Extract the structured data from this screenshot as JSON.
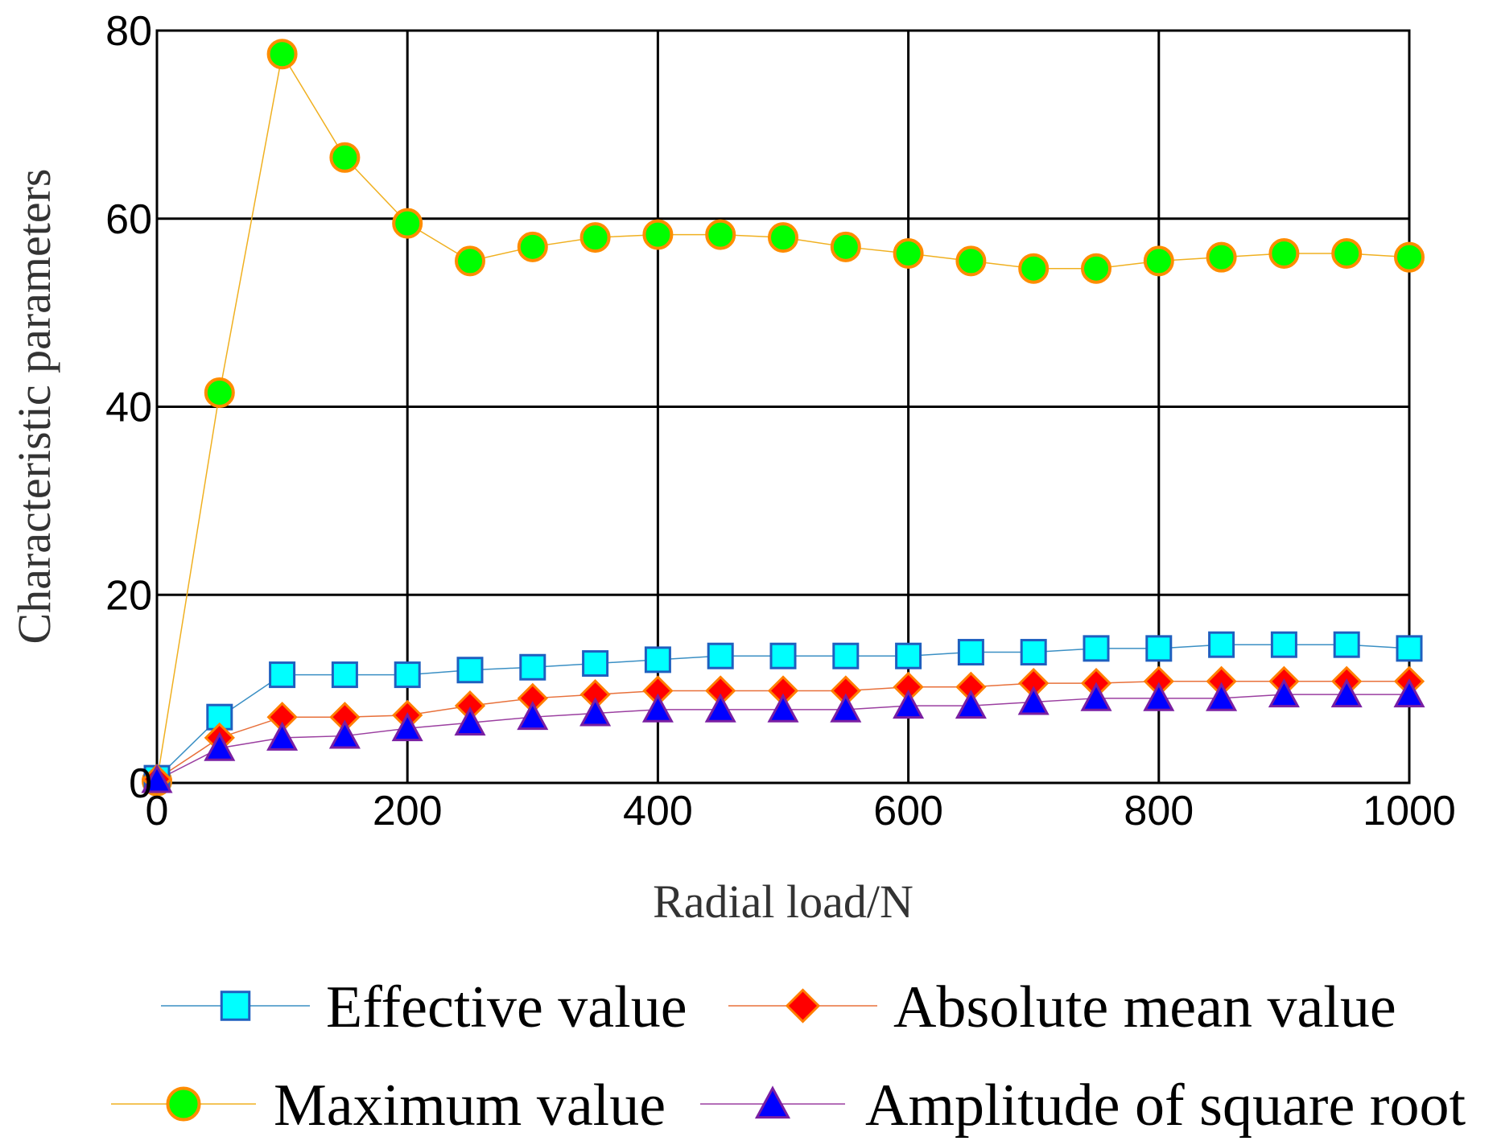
{
  "chart_data": {
    "type": "line",
    "title": "",
    "xlabel": "Radial load/N",
    "ylabel": "Characteristic parameters",
    "xlim": [
      0,
      1000
    ],
    "ylim": [
      0,
      80
    ],
    "xticks": [
      0,
      200,
      400,
      600,
      800,
      1000
    ],
    "yticks": [
      0,
      20,
      40,
      60,
      80
    ],
    "grid": true,
    "legend_position": "bottom",
    "x": [
      0,
      50,
      100,
      150,
      200,
      250,
      300,
      350,
      400,
      450,
      500,
      550,
      600,
      650,
      700,
      750,
      800,
      850,
      900,
      950,
      1000
    ],
    "series": [
      {
        "name": "Effective value",
        "marker": "square",
        "line_color": "#3a8fc4",
        "fill_color": "#00ffff",
        "stroke_color": "#1f5fbf",
        "values": [
          0.5,
          7.0,
          11.5,
          11.5,
          11.5,
          12.0,
          12.3,
          12.7,
          13.1,
          13.5,
          13.5,
          13.5,
          13.5,
          13.9,
          13.9,
          14.3,
          14.3,
          14.7,
          14.7,
          14.7,
          14.3
        ]
      },
      {
        "name": "Absolute mean value",
        "marker": "diamond",
        "line_color": "#e8703a",
        "fill_color": "#ff0000",
        "stroke_color": "#ff7f00",
        "values": [
          0.4,
          4.8,
          7.0,
          7.0,
          7.2,
          8.2,
          9.0,
          9.4,
          9.8,
          9.8,
          9.8,
          9.8,
          10.2,
          10.2,
          10.6,
          10.6,
          10.8,
          10.8,
          10.8,
          10.8,
          10.8
        ]
      },
      {
        "name": "Maximum value",
        "marker": "circle",
        "line_color": "#f0b020",
        "fill_color": "#00ff00",
        "stroke_color": "#ff8c00",
        "values": [
          0.2,
          41.5,
          77.5,
          66.5,
          59.5,
          55.5,
          57.0,
          58.0,
          58.3,
          58.3,
          58.0,
          57.0,
          56.3,
          55.5,
          54.7,
          54.7,
          55.5,
          55.9,
          56.3,
          56.3,
          55.9
        ]
      },
      {
        "name": "Amplitude of square root",
        "marker": "triangle",
        "line_color": "#9b3fa0",
        "fill_color": "#0000ff",
        "stroke_color": "#7a1fa2",
        "values": [
          0.3,
          3.7,
          4.8,
          5.0,
          5.8,
          6.4,
          7.0,
          7.4,
          7.8,
          7.8,
          7.8,
          7.8,
          8.2,
          8.2,
          8.6,
          9.0,
          9.0,
          9.0,
          9.4,
          9.4,
          9.4
        ]
      }
    ]
  }
}
